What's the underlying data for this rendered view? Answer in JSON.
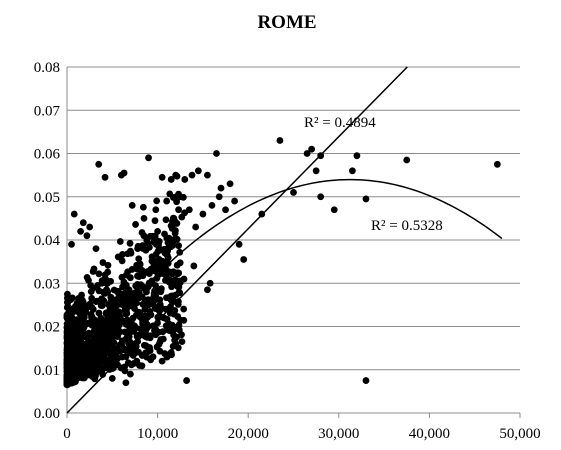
{
  "chart_data": {
    "type": "scatter",
    "title": "ROME",
    "xlabel": "",
    "ylabel": "",
    "xlim": [
      0,
      50000
    ],
    "ylim": [
      0,
      0.08
    ],
    "x_ticks": [
      "0",
      "10,000",
      "20,000",
      "30,000",
      "40,000",
      "50,000"
    ],
    "y_ticks": [
      "0.00",
      "0.01",
      "0.02",
      "0.03",
      "0.04",
      "0.05",
      "0.06",
      "0.07",
      "0.08"
    ],
    "grid": "horizontal",
    "legend": "none",
    "marker_color": "#000000",
    "points": [
      [
        3500,
        0.0575
      ],
      [
        4200,
        0.0545
      ],
      [
        6000,
        0.055
      ],
      [
        6300,
        0.0555
      ],
      [
        9000,
        0.059
      ],
      [
        10500,
        0.0545
      ],
      [
        11500,
        0.054
      ],
      [
        12000,
        0.055
      ],
      [
        13000,
        0.054
      ],
      [
        13800,
        0.055
      ],
      [
        14500,
        0.056
      ],
      [
        15500,
        0.055
      ],
      [
        16500,
        0.06
      ],
      [
        17000,
        0.052
      ],
      [
        18000,
        0.053
      ],
      [
        18500,
        0.049
      ],
      [
        19000,
        0.039
      ],
      [
        19500,
        0.0355
      ],
      [
        21500,
        0.046
      ],
      [
        23500,
        0.063
      ],
      [
        25000,
        0.051
      ],
      [
        26500,
        0.06
      ],
      [
        27000,
        0.061
      ],
      [
        27500,
        0.056
      ],
      [
        28000,
        0.0595
      ],
      [
        28000,
        0.05
      ],
      [
        29500,
        0.047
      ],
      [
        31500,
        0.056
      ],
      [
        32000,
        0.0595
      ],
      [
        33000,
        0.0495
      ],
      [
        37500,
        0.0585
      ],
      [
        47500,
        0.0575
      ],
      [
        33000,
        0.0075
      ],
      [
        13200,
        0.0075
      ],
      [
        15500,
        0.0285
      ],
      [
        15800,
        0.03
      ],
      [
        14000,
        0.034
      ],
      [
        11500,
        0.014
      ],
      [
        12000,
        0.016
      ],
      [
        10500,
        0.012
      ],
      [
        9500,
        0.013
      ],
      [
        8000,
        0.011
      ],
      [
        7000,
        0.009
      ],
      [
        6500,
        0.007
      ],
      [
        5000,
        0.008
      ],
      [
        4500,
        0.012
      ],
      [
        3200,
        0.038
      ],
      [
        2500,
        0.043
      ],
      [
        1800,
        0.044
      ],
      [
        800,
        0.046
      ],
      [
        1500,
        0.042
      ],
      [
        500,
        0.039
      ],
      [
        2200,
        0.041
      ],
      [
        7200,
        0.048
      ],
      [
        8500,
        0.045
      ],
      [
        9800,
        0.047
      ],
      [
        11000,
        0.049
      ],
      [
        12500,
        0.05
      ],
      [
        13500,
        0.047
      ],
      [
        10000,
        0.042
      ],
      [
        8800,
        0.04
      ],
      [
        7800,
        0.038
      ],
      [
        11800,
        0.045
      ],
      [
        14200,
        0.043
      ],
      [
        16000,
        0.048
      ],
      [
        16800,
        0.05
      ],
      [
        17500,
        0.047
      ],
      [
        15000,
        0.046
      ]
    ],
    "linear_fit": {
      "slope": 2.13e-06,
      "intercept": 0.0,
      "label": "R² = 0.4894"
    },
    "poly_fit": {
      "a": -4.85e-11,
      "b": 3.03e-06,
      "c": 0.00665,
      "x_end": 48000,
      "label": "R² = 0.5328"
    }
  }
}
